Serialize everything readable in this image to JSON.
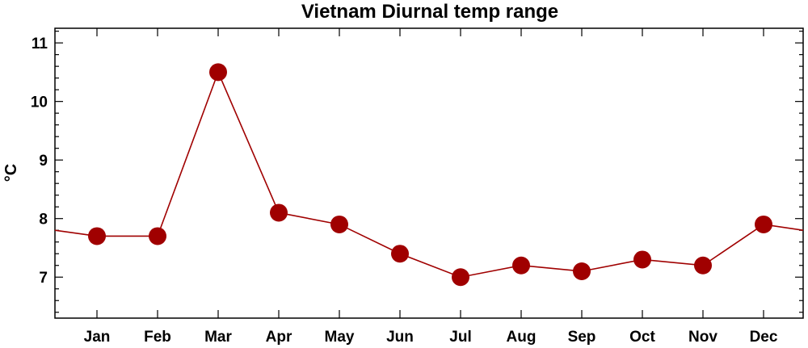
{
  "chart_data": {
    "type": "line",
    "title": "Vietnam Diurnal temp range",
    "ylabel": "°C",
    "xlabel": "",
    "categories": [
      "Jan",
      "Feb",
      "Mar",
      "Apr",
      "May",
      "Jun",
      "Jul",
      "Aug",
      "Sep",
      "Oct",
      "Nov",
      "Dec"
    ],
    "series": [
      {
        "values": [
          7.7,
          7.7,
          10.5,
          8.1,
          7.9,
          7.4,
          7.0,
          7.2,
          7.1,
          7.3,
          7.2,
          7.9
        ]
      }
    ],
    "yticks": [
      "7",
      "8",
      "9",
      "10",
      "11"
    ],
    "ylim": [
      6.3,
      11.25
    ],
    "grid": false,
    "line_color": "#a00000",
    "marker_color": "#a00000"
  }
}
